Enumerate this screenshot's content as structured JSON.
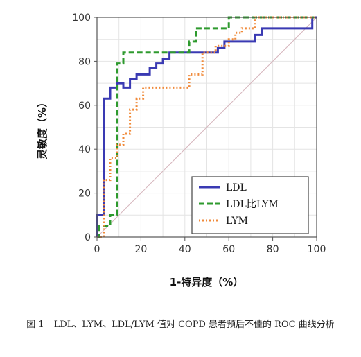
{
  "chart_data": {
    "type": "line",
    "xlabel": "1-特异度（%）",
    "ylabel": "灵敏度（%）",
    "xlim": [
      0,
      100
    ],
    "ylim": [
      0,
      100
    ],
    "xticks": [
      0,
      20,
      40,
      60,
      80,
      100
    ],
    "yticks": [
      0,
      20,
      40,
      60,
      80,
      100
    ],
    "grid": true,
    "legend_position": "bottom-right",
    "reference_line": {
      "x": [
        0,
        100
      ],
      "y": [
        0,
        100
      ],
      "color": "#d6b6bd"
    },
    "series": [
      {
        "name": "LDL",
        "color": "#3a3ab3",
        "style": "solid",
        "x": [
          0,
          0,
          3,
          3,
          6,
          6,
          9,
          9,
          12,
          12,
          15,
          15,
          18,
          18,
          24,
          24,
          27,
          27,
          30,
          30,
          33,
          33,
          55,
          55,
          58,
          58,
          72,
          72,
          75,
          75,
          98,
          98,
          100
        ],
        "y": [
          0,
          10,
          10,
          63,
          63,
          68,
          68,
          70,
          70,
          68,
          68,
          72,
          72,
          74,
          74,
          77,
          77,
          79,
          79,
          81,
          81,
          84,
          84,
          86,
          86,
          89,
          89,
          92,
          92,
          95,
          95,
          100,
          100
        ]
      },
      {
        "name": "LDL比LYM",
        "color": "#2e9a2e",
        "style": "dashed",
        "x": [
          0,
          1,
          1,
          6,
          6,
          9,
          9,
          12,
          12,
          42,
          42,
          45,
          45,
          60,
          60,
          63,
          63,
          100
        ],
        "y": [
          0,
          0,
          5,
          5,
          10,
          10,
          79,
          79,
          84,
          84,
          89,
          89,
          95,
          95,
          100,
          100,
          100,
          100
        ]
      },
      {
        "name": "LYM",
        "color": "#f08a3a",
        "style": "dotted",
        "x": [
          0,
          3,
          3,
          6,
          6,
          9,
          9,
          12,
          12,
          15,
          15,
          18,
          18,
          21,
          21,
          42,
          42,
          48,
          48,
          54,
          54,
          60,
          60,
          63,
          63,
          66,
          66,
          72,
          72,
          100
        ],
        "y": [
          0,
          0,
          26,
          26,
          36,
          36,
          42,
          42,
          47,
          47,
          58,
          58,
          63,
          63,
          68,
          68,
          74,
          74,
          84,
          84,
          87,
          87,
          90,
          90,
          93,
          93,
          95,
          95,
          100,
          100
        ]
      }
    ]
  },
  "caption": {
    "figure_number": "图 1",
    "text": "LDL、LYM、LDL/LYM 值对 COPD 患者预后不佳的 ROC 曲线分析"
  }
}
